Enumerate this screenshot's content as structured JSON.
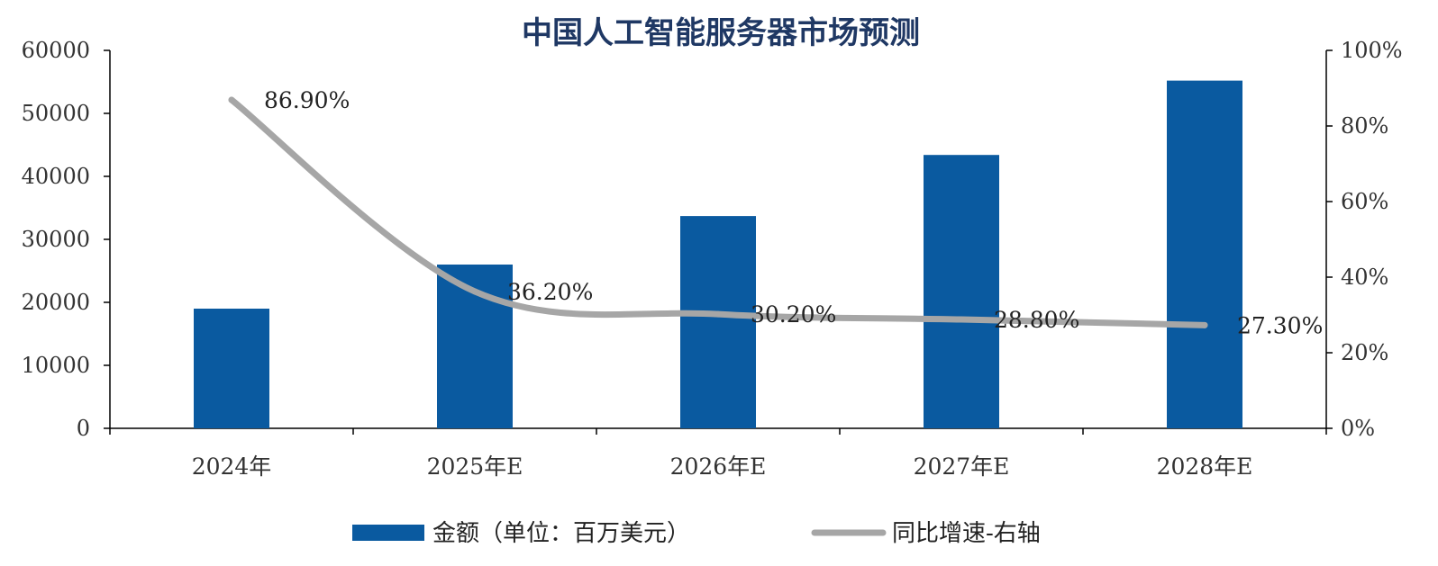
{
  "chart_data": {
    "type": "bar",
    "title": "中国人工智能服务器市场预测",
    "categories": [
      "2024年",
      "2025年E",
      "2026年E",
      "2027年E",
      "2028年E"
    ],
    "series": [
      {
        "name": "金额（单位：百万美元）",
        "type": "bar",
        "axis": "left",
        "color": "#0a5aa0",
        "values": [
          19000,
          26000,
          33700,
          43400,
          55200
        ]
      },
      {
        "name": "同比增速-右轴",
        "type": "line",
        "axis": "right",
        "color": "#a6a6a6",
        "values": [
          86.9,
          36.2,
          30.2,
          28.8,
          27.3
        ],
        "labels": [
          "86.90%",
          "36.20%",
          "30.20%",
          "28.80%",
          "27.30%"
        ]
      }
    ],
    "ylim_left": [
      0,
      60000
    ],
    "yticks_left": [
      "0",
      "10000",
      "20000",
      "30000",
      "40000",
      "50000",
      "60000"
    ],
    "ylim_right": [
      0,
      100
    ],
    "yticks_right": [
      "0%",
      "20%",
      "40%",
      "60%",
      "80%",
      "100%"
    ],
    "grid": false,
    "legend_position": "bottom",
    "colors": {
      "title": "#1f3864",
      "bar": "#0a5aa0",
      "line": "#a6a6a6",
      "axis": "#000000"
    }
  }
}
